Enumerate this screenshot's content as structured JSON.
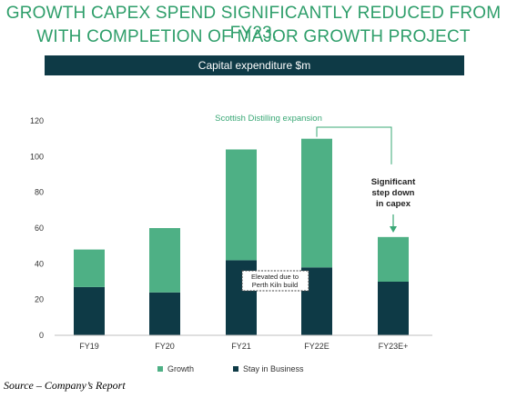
{
  "headline": {
    "line1": "GROWTH CAPEX SPEND SIGNIFICANTLY REDUCED FROM FY23,",
    "line2": "WITH COMPLETION OF MAJOR GROWTH PROJECT"
  },
  "banner": "Capital expenditure $m",
  "source": "Source – Company’s Report",
  "colors": {
    "growth": "#4eb085",
    "stay": "#0e3a46",
    "headline": "#2e9e6a",
    "annotation_green": "#3aa876"
  },
  "chart_data": {
    "type": "bar",
    "stacked": true,
    "categories": [
      "FY19",
      "FY20",
      "FY21",
      "FY22E",
      "FY23E+"
    ],
    "series": [
      {
        "name": "Stay in Business",
        "values": [
          27,
          24,
          42,
          38,
          30
        ]
      },
      {
        "name": "Growth",
        "values": [
          21,
          36,
          62,
          72,
          25
        ]
      }
    ],
    "ylim": [
      0,
      120
    ],
    "yticks": [
      0,
      20,
      40,
      60,
      80,
      100,
      120
    ],
    "grid": false,
    "legend": [
      "Growth",
      "Stay in Business"
    ],
    "legend_position": "bottom",
    "annotations": {
      "scottish": "Scottish Distilling expansion",
      "significant": [
        "Significant",
        "step down",
        "in capex"
      ],
      "elevated": [
        "Elevated due to",
        "Perth Kiln build"
      ]
    }
  }
}
